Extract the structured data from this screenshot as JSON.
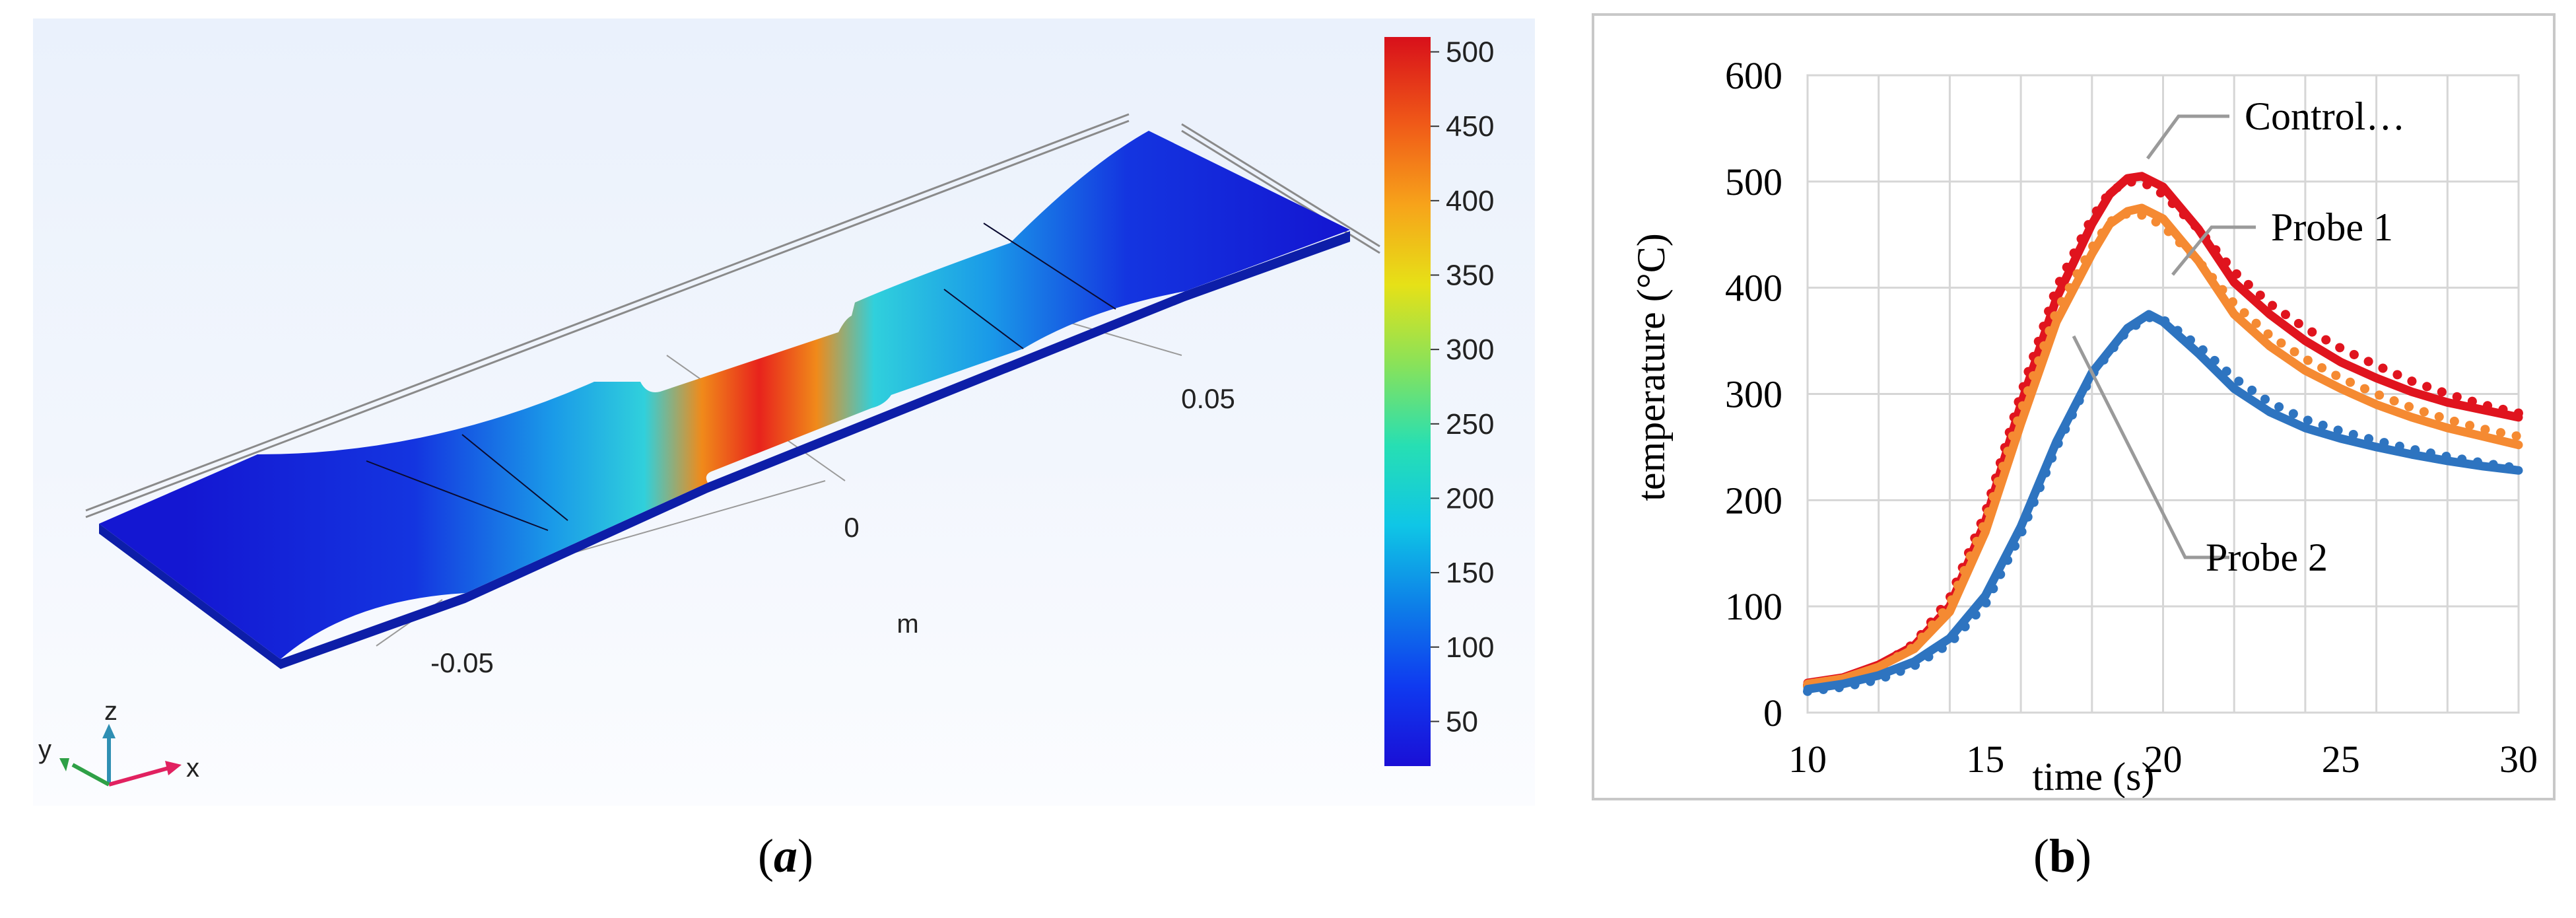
{
  "panel_a": {
    "label_open": "(",
    "label_letter": "a",
    "label_close": ")",
    "units_label": "m",
    "axis_ticks": [
      "-0.05",
      "0",
      "0.05"
    ],
    "triad": {
      "x": "x",
      "y": "y",
      "z": "z"
    },
    "colorbar": {
      "ticks": [
        "500",
        "450",
        "400",
        "350",
        "300",
        "250",
        "200",
        "150",
        "100",
        "50"
      ],
      "colors": [
        "#1a0fd6",
        "#0f3af0",
        "#0d7fe8",
        "#0fc6e6",
        "#27dfb3",
        "#88e25a",
        "#e6e117",
        "#f7a31a",
        "#f05a18",
        "#d8101a"
      ]
    }
  },
  "panel_b": {
    "label_open": "(",
    "label_letter": "b",
    "label_close": ")"
  },
  "chart_data": {
    "type": "line",
    "xlabel": "time (s)",
    "ylabel": "temperature (°C)",
    "xlim": [
      10,
      30
    ],
    "ylim": [
      0,
      600
    ],
    "xticks": [
      10,
      15,
      20,
      25,
      30
    ],
    "yticks": [
      0,
      100,
      200,
      300,
      400,
      500,
      600
    ],
    "grid": true,
    "annotations": [
      "Control…",
      "Probe 1",
      "Probe 2"
    ],
    "colors": {
      "control": "#e0141e",
      "probe1": "#f58a32",
      "probe2": "#2e74c0"
    },
    "series": [
      {
        "name": "Control…",
        "style": "solid",
        "x": [
          10,
          11,
          12,
          13,
          14,
          15,
          16,
          17,
          18,
          18.5,
          19,
          19.4,
          20,
          21,
          22,
          23,
          24,
          25,
          26,
          27,
          28,
          29,
          30
        ],
        "y": [
          28,
          33,
          45,
          63,
          100,
          180,
          290,
          390,
          460,
          488,
          503,
          505,
          495,
          455,
          405,
          375,
          350,
          330,
          315,
          302,
          292,
          285,
          278
        ]
      },
      {
        "name": "Control…",
        "style": "dotted",
        "x": [
          10,
          11,
          12,
          13,
          14,
          15,
          16,
          17,
          18,
          18.5,
          19,
          19.5,
          20,
          21,
          22,
          23,
          24,
          25,
          26,
          27,
          28,
          29,
          30
        ],
        "y": [
          26,
          32,
          43,
          65,
          108,
          188,
          300,
          400,
          466,
          490,
          500,
          498,
          488,
          455,
          415,
          385,
          362,
          343,
          327,
          312,
          300,
          290,
          282
        ]
      },
      {
        "name": "Probe 1",
        "style": "solid",
        "x": [
          10,
          11,
          12,
          13,
          14,
          15,
          16,
          17,
          18,
          18.5,
          19,
          19.4,
          20,
          21,
          22,
          23,
          24,
          25,
          26,
          27,
          28,
          29,
          30
        ],
        "y": [
          27,
          32,
          43,
          60,
          95,
          170,
          272,
          368,
          432,
          460,
          472,
          475,
          465,
          425,
          375,
          345,
          322,
          305,
          290,
          278,
          268,
          260,
          252
        ]
      },
      {
        "name": "Probe 1",
        "style": "dotted",
        "x": [
          10,
          11,
          12,
          13,
          14,
          15,
          16,
          17,
          18,
          18.5,
          19,
          19.5,
          20,
          21,
          22,
          23,
          24,
          25,
          26,
          27,
          28,
          29,
          30
        ],
        "y": [
          25,
          31,
          42,
          62,
          102,
          180,
          284,
          378,
          438,
          462,
          470,
          468,
          458,
          425,
          385,
          355,
          333,
          315,
          300,
          287,
          276,
          267,
          260
        ]
      },
      {
        "name": "Probe 2",
        "style": "solid",
        "x": [
          10,
          11,
          12,
          13,
          14,
          15,
          16,
          17,
          18,
          19,
          19.6,
          20,
          21,
          22,
          23,
          24,
          25,
          26,
          27,
          28,
          29,
          30
        ],
        "y": [
          22,
          27,
          35,
          48,
          70,
          110,
          175,
          255,
          320,
          362,
          375,
          368,
          338,
          305,
          283,
          268,
          258,
          250,
          243,
          237,
          232,
          228
        ]
      },
      {
        "name": "Probe 2",
        "style": "dotted",
        "x": [
          10,
          11,
          12,
          13,
          14,
          15,
          16,
          17,
          18,
          19,
          19.6,
          20,
          21,
          22,
          23,
          24,
          25,
          26,
          27,
          28,
          29,
          30
        ],
        "y": [
          20,
          24,
          31,
          44,
          65,
          102,
          168,
          250,
          318,
          360,
          372,
          370,
          345,
          315,
          292,
          276,
          265,
          256,
          248,
          241,
          235,
          230
        ]
      }
    ]
  }
}
